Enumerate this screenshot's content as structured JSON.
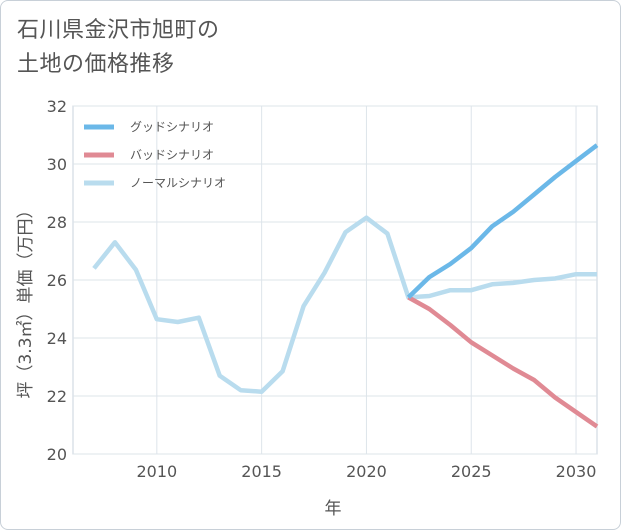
{
  "title": {
    "line1": "石川県金沢市旭町の",
    "line2": "土地の価格推移"
  },
  "chart_data": {
    "type": "line",
    "xlabel": "年",
    "ylabel": "坪（3.3㎡）単価（万円）",
    "xlim": [
      2006,
      2031
    ],
    "ylim": [
      20,
      32
    ],
    "xticks": [
      2010,
      2015,
      2020,
      2025,
      2030
    ],
    "yticks": [
      20,
      22,
      24,
      26,
      28,
      30,
      32
    ],
    "grid": true,
    "legend_position": "top-left",
    "series": [
      {
        "name": "グッドシナリオ",
        "color": "#6bb8e8",
        "x": [
          2022,
          2023,
          2024,
          2025,
          2026,
          2027,
          2028,
          2029,
          2030,
          2031
        ],
        "values": [
          25.4,
          26.1,
          26.55,
          27.1,
          27.85,
          28.35,
          28.95,
          29.55,
          30.1,
          30.65
        ]
      },
      {
        "name": "バッドシナリオ",
        "color": "#e08a94",
        "x": [
          2022,
          2023,
          2024,
          2025,
          2026,
          2027,
          2028,
          2029,
          2030,
          2031
        ],
        "values": [
          25.4,
          25.0,
          24.45,
          23.85,
          23.4,
          22.95,
          22.55,
          21.95,
          21.45,
          20.95
        ]
      },
      {
        "name": "ノーマルシナリオ",
        "color": "#b9dcee",
        "x": [
          2007,
          2008,
          2009,
          2010,
          2011,
          2012,
          2013,
          2014,
          2015,
          2016,
          2017,
          2018,
          2019,
          2020,
          2021,
          2022,
          2023,
          2024,
          2025,
          2026,
          2027,
          2028,
          2029,
          2030,
          2031
        ],
        "values": [
          26.4,
          27.3,
          26.35,
          24.65,
          24.55,
          24.7,
          22.7,
          22.2,
          22.15,
          22.85,
          25.1,
          26.25,
          27.65,
          28.15,
          27.6,
          25.4,
          25.45,
          25.65,
          25.65,
          25.85,
          25.9,
          26.0,
          26.05,
          26.2,
          26.2
        ]
      }
    ]
  }
}
